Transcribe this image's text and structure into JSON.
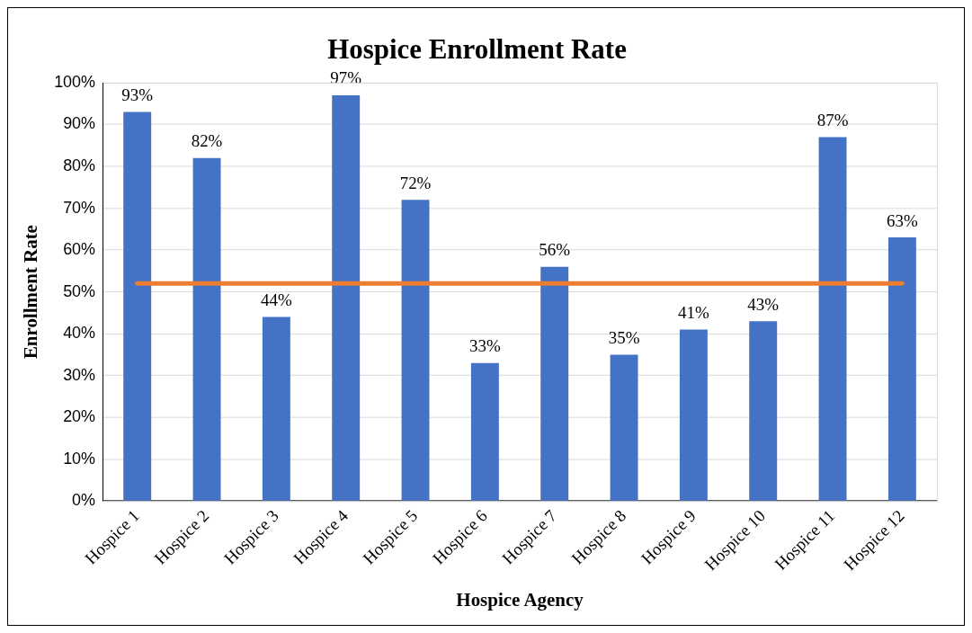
{
  "chart_data": {
    "type": "bar",
    "title": "Hospice Enrollment Rate",
    "xlabel": "Hospice Agency",
    "ylabel": "Enrollment Rate",
    "categories": [
      "Hospice 1",
      "Hospice 2",
      "Hospice 3",
      "Hospice 4",
      "Hospice 5",
      "Hospice 6",
      "Hospice 7",
      "Hospice 8",
      "Hospice 9",
      "Hospice 10",
      "Hospice 11",
      "Hospice 12"
    ],
    "values": [
      93,
      82,
      44,
      97,
      72,
      33,
      56,
      35,
      41,
      43,
      87,
      63
    ],
    "value_labels": [
      "93%",
      "82%",
      "44%",
      "97%",
      "72%",
      "33%",
      "56%",
      "35%",
      "41%",
      "43%",
      "87%",
      "63%"
    ],
    "color": "#4472c4",
    "ylim": [
      0,
      100
    ],
    "yticks": [
      {
        "value": 0,
        "label": "0%"
      },
      {
        "value": 10,
        "label": "10%"
      },
      {
        "value": 20,
        "label": "20%"
      },
      {
        "value": 30,
        "label": "30%"
      },
      {
        "value": 40,
        "label": "40%"
      },
      {
        "value": 50,
        "label": "50%"
      },
      {
        "value": 60,
        "label": "60%"
      },
      {
        "value": 70,
        "label": "70%"
      },
      {
        "value": 80,
        "label": "80%"
      },
      {
        "value": 90,
        "label": "90%"
      },
      {
        "value": 100,
        "label": "100%"
      }
    ],
    "grid": "y",
    "ref_lines": [
      {
        "axis": "y",
        "value": 52,
        "color": "#ed7d31",
        "line_style": "solid"
      }
    ]
  }
}
